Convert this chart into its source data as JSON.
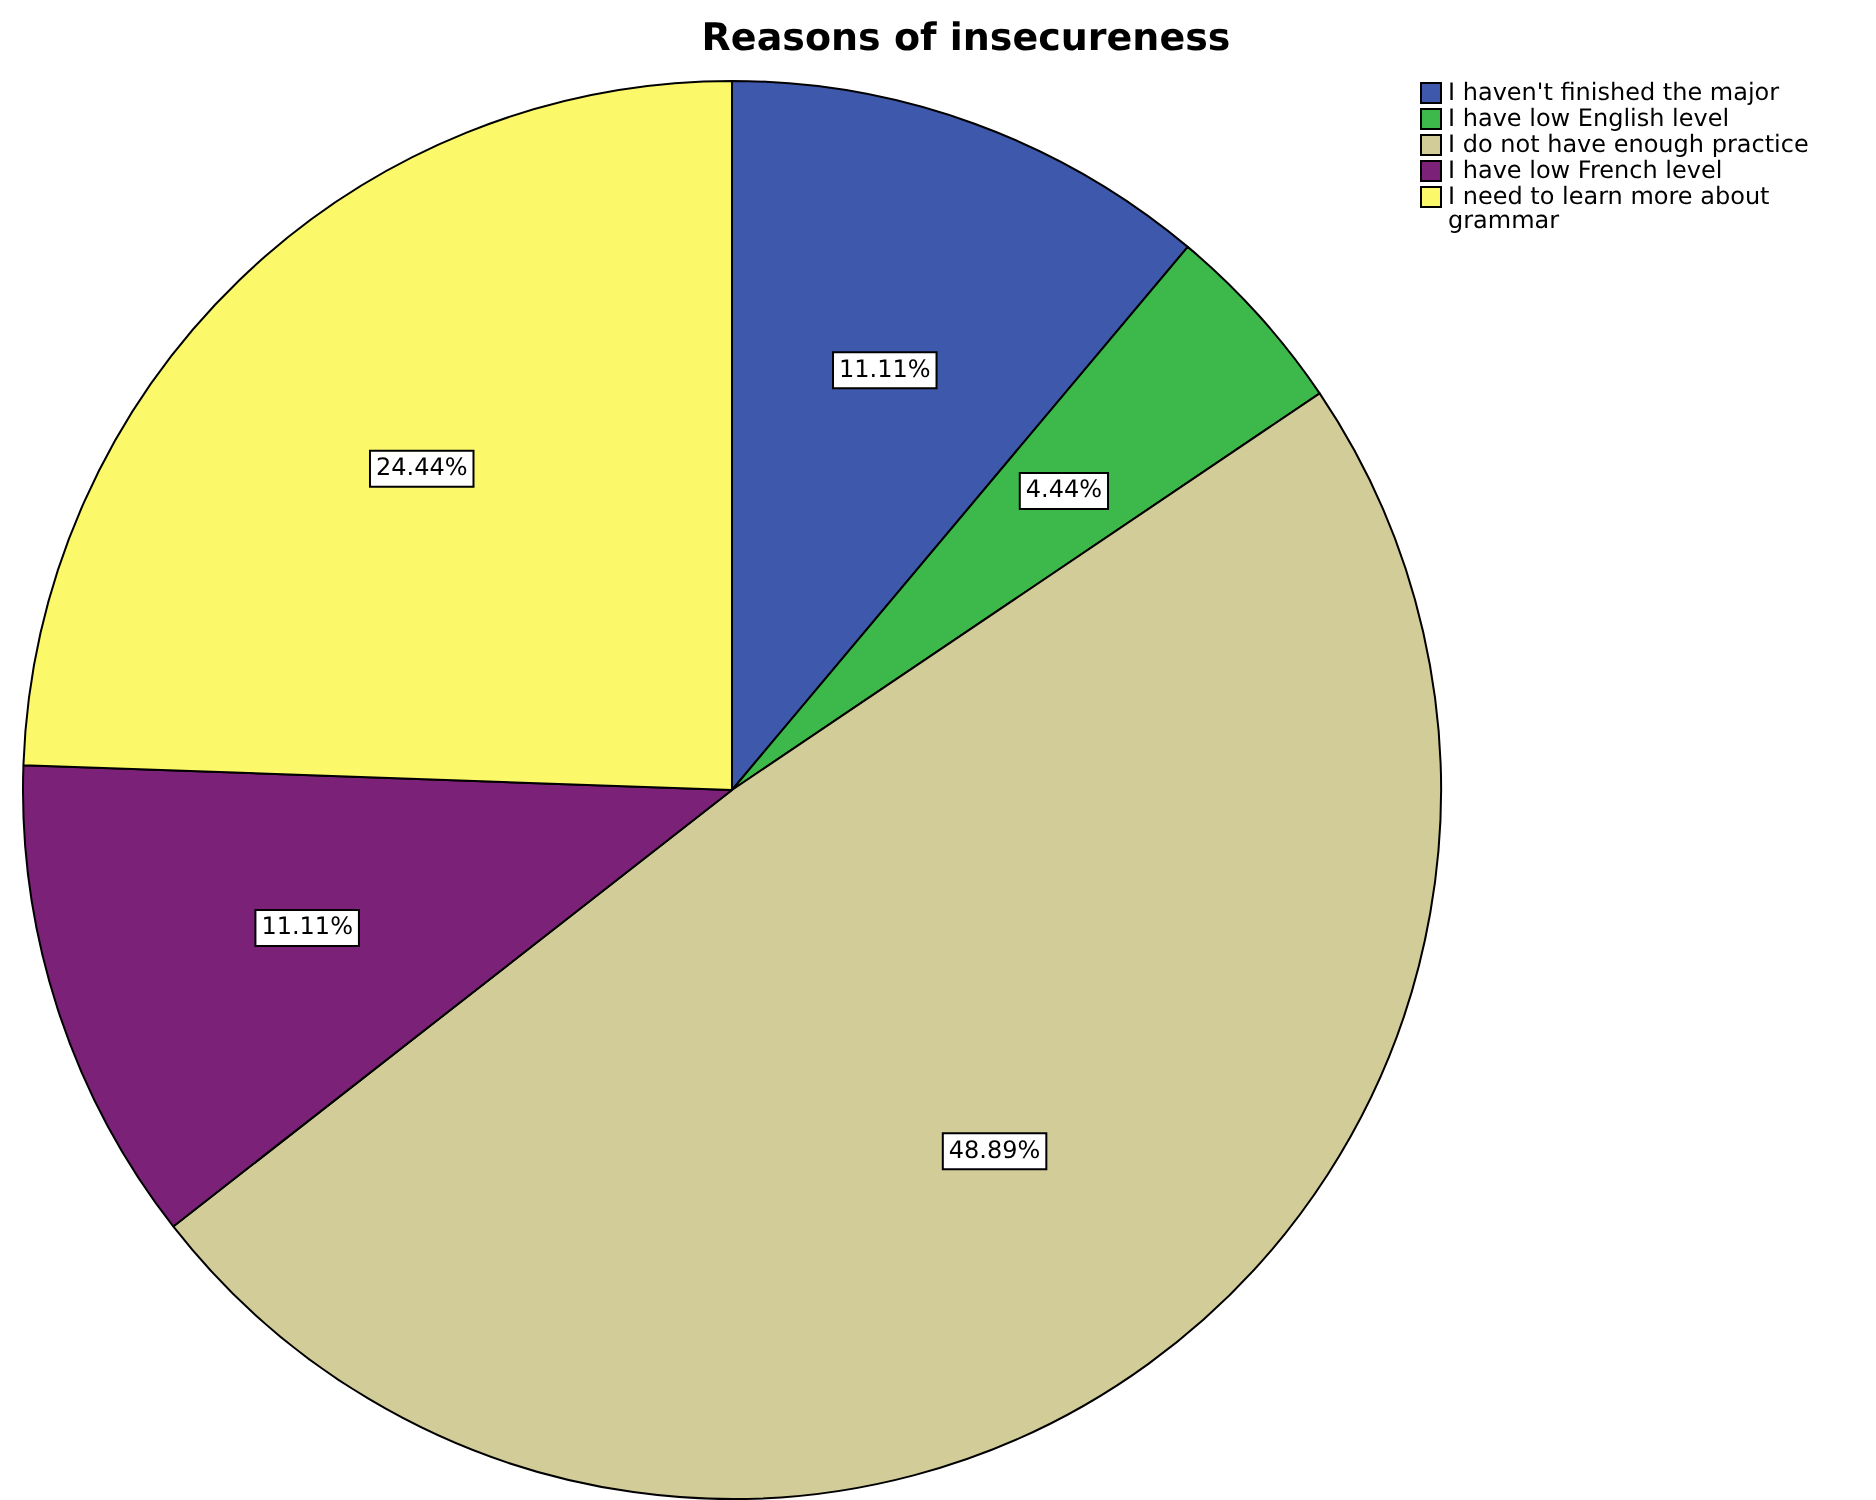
{
  "chart_data": {
    "type": "pie",
    "title": "Reasons of insecureness",
    "categories": [
      "I haven't finished the major",
      "I have low English level",
      "I do not have enough practice",
      "I have low French level",
      "I need to learn more about grammar"
    ],
    "values": [
      11.11,
      4.44,
      48.89,
      11.11,
      24.44
    ],
    "value_labels": [
      "11.11%",
      "4.44%",
      "48.89%",
      "11.11%",
      "24.44%"
    ],
    "colors": [
      "#3e58ac",
      "#3cb94a",
      "#d2cc98",
      "#7b2178",
      "#fbf869"
    ],
    "legend": "top right"
  }
}
